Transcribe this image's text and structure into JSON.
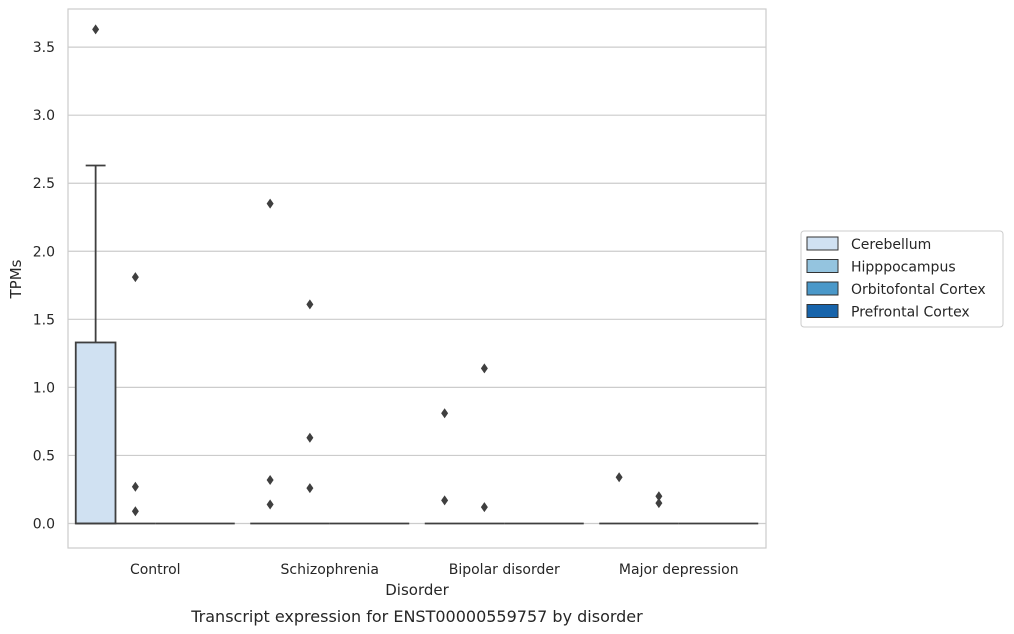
{
  "chart_data": {
    "type": "box",
    "xlabel": "Disorder",
    "ylabel": "TPMs",
    "caption": "Transcript expression for ENST00000559757 by disorder",
    "ylim": [
      -0.18,
      3.78
    ],
    "yticks": [
      "0.0",
      "0.5",
      "1.0",
      "1.5",
      "2.0",
      "2.5",
      "3.0",
      "3.5"
    ],
    "grid": "horizontal",
    "legend_position": "right",
    "categories": [
      "Control",
      "Schizophrenia",
      "Bipolar disorder",
      "Major depression"
    ],
    "series": [
      {
        "name": "Cerebellum",
        "color": "#d0e1f2",
        "boxes": [
          {
            "q1": 0.0,
            "median": 0.0,
            "q3": 1.33,
            "whisker_low": 0.0,
            "whisker_high": 2.63,
            "outliers": [
              3.63
            ]
          },
          {
            "q1": 0.0,
            "median": 0.0,
            "q3": 0.0,
            "whisker_low": 0.0,
            "whisker_high": 0.0,
            "outliers": [
              2.35,
              0.32,
              0.14
            ]
          },
          {
            "q1": 0.0,
            "median": 0.0,
            "q3": 0.0,
            "whisker_low": 0.0,
            "whisker_high": 0.0,
            "outliers": [
              0.81,
              0.17
            ]
          },
          {
            "q1": 0.0,
            "median": 0.0,
            "q3": 0.0,
            "whisker_low": 0.0,
            "whisker_high": 0.0,
            "outliers": [
              0.34
            ]
          }
        ]
      },
      {
        "name": "Hipppocampus",
        "color": "#94c4df",
        "boxes": [
          {
            "q1": 0.0,
            "median": 0.0,
            "q3": 0.0,
            "whisker_low": 0.0,
            "whisker_high": 0.0,
            "outliers": [
              1.81,
              0.27,
              0.09
            ]
          },
          {
            "q1": 0.0,
            "median": 0.0,
            "q3": 0.0,
            "whisker_low": 0.0,
            "whisker_high": 0.0,
            "outliers": [
              1.61,
              0.63,
              0.26
            ]
          },
          {
            "q1": 0.0,
            "median": 0.0,
            "q3": 0.0,
            "whisker_low": 0.0,
            "whisker_high": 0.0,
            "outliers": [
              1.14,
              0.12
            ]
          },
          {
            "q1": 0.0,
            "median": 0.0,
            "q3": 0.0,
            "whisker_low": 0.0,
            "whisker_high": 0.0,
            "outliers": [
              0.2,
              0.15
            ]
          }
        ]
      },
      {
        "name": "Orbitofontal Cortex",
        "color": "#4a98c9",
        "boxes": [
          {
            "q1": 0.0,
            "median": 0.0,
            "q3": 0.0,
            "whisker_low": 0.0,
            "whisker_high": 0.0,
            "outliers": []
          },
          {
            "q1": 0.0,
            "median": 0.0,
            "q3": 0.0,
            "whisker_low": 0.0,
            "whisker_high": 0.0,
            "outliers": []
          },
          {
            "q1": 0.0,
            "median": 0.0,
            "q3": 0.0,
            "whisker_low": 0.0,
            "whisker_high": 0.0,
            "outliers": []
          },
          {
            "q1": 0.0,
            "median": 0.0,
            "q3": 0.0,
            "whisker_low": 0.0,
            "whisker_high": 0.0,
            "outliers": []
          }
        ]
      },
      {
        "name": "Prefrontal Cortex",
        "color": "#1764ab",
        "boxes": [
          {
            "q1": 0.0,
            "median": 0.0,
            "q3": 0.0,
            "whisker_low": 0.0,
            "whisker_high": 0.0,
            "outliers": []
          },
          {
            "q1": 0.0,
            "median": 0.0,
            "q3": 0.0,
            "whisker_low": 0.0,
            "whisker_high": 0.0,
            "outliers": []
          },
          {
            "q1": 0.0,
            "median": 0.0,
            "q3": 0.0,
            "whisker_low": 0.0,
            "whisker_high": 0.0,
            "outliers": []
          },
          {
            "q1": 0.0,
            "median": 0.0,
            "q3": 0.0,
            "whisker_low": 0.0,
            "whisker_high": 0.0,
            "outliers": []
          }
        ]
      }
    ]
  }
}
